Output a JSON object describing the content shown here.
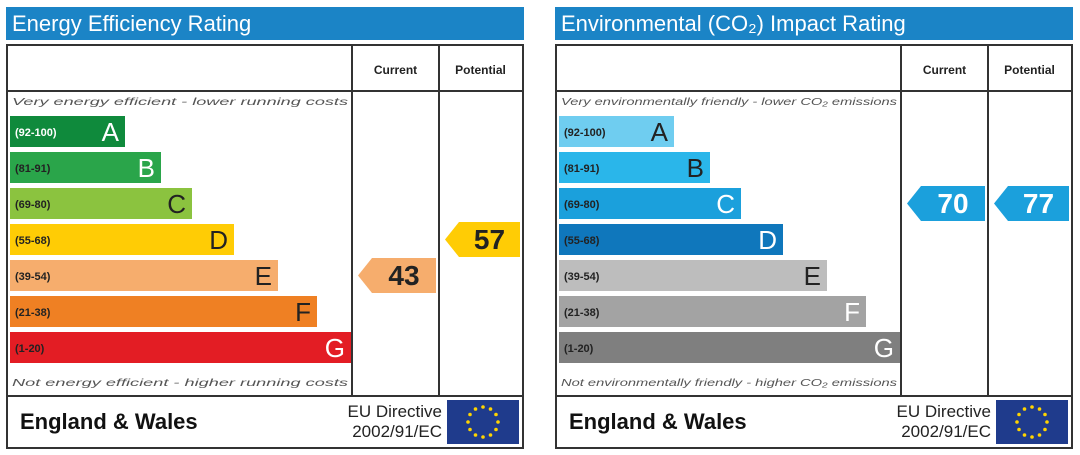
{
  "charts": [
    {
      "id": "energy",
      "title": "Energy Efficiency Rating",
      "title_color": "#1b84c6",
      "col_current": "Current",
      "col_potential": "Potential",
      "top_note": "Very energy efficient - lower running costs",
      "bottom_note": "Not energy efficient - higher running costs",
      "bands": [
        {
          "range": "(92-100)",
          "letter": "A",
          "color": "#0f8a3c",
          "letter_color": "#ffffff"
        },
        {
          "range": "(81-91)",
          "letter": "B",
          "color": "#2aa54a",
          "letter_color": "#ffffff"
        },
        {
          "range": "(69-80)",
          "letter": "C",
          "color": "#8bc33f",
          "letter_color": "#222222"
        },
        {
          "range": "(55-68)",
          "letter": "D",
          "color": "#ffcc05",
          "letter_color": "#222222"
        },
        {
          "range": "(39-54)",
          "letter": "E",
          "color": "#f6ad6d",
          "letter_color": "#222222"
        },
        {
          "range": "(21-38)",
          "letter": "F",
          "color": "#ef8023",
          "letter_color": "#222222"
        },
        {
          "range": "(1-20)",
          "letter": "G",
          "color": "#e31d24",
          "letter_color": "#ffffff"
        }
      ],
      "current": {
        "value": 43,
        "band": "E",
        "color": "#f6ad6d"
      },
      "potential": {
        "value": 57,
        "band": "D",
        "color": "#ffcc05"
      },
      "footer": {
        "country": "England & Wales",
        "directive_line1": "EU Directive",
        "directive_line2": "2002/91/EC"
      }
    },
    {
      "id": "environment",
      "title": "Environmental (CO₂) Impact Rating",
      "title_color": "#1b84c6",
      "col_current": "Current",
      "col_potential": "Potential",
      "top_note": "Very environmentally friendly - lower CO₂ emissions",
      "bottom_note": "Not environmentally friendly - higher CO₂ emissions",
      "bands": [
        {
          "range": "(92-100)",
          "letter": "A",
          "color": "#6fcdf0",
          "letter_color": "#222222"
        },
        {
          "range": "(81-91)",
          "letter": "B",
          "color": "#2ab6ea",
          "letter_color": "#222222"
        },
        {
          "range": "(69-80)",
          "letter": "C",
          "color": "#1ba0dc",
          "letter_color": "#ffffff"
        },
        {
          "range": "(55-68)",
          "letter": "D",
          "color": "#0f77bc",
          "letter_color": "#ffffff"
        },
        {
          "range": "(39-54)",
          "letter": "E",
          "color": "#bdbdbd",
          "letter_color": "#222222"
        },
        {
          "range": "(21-38)",
          "letter": "F",
          "color": "#a3a3a3",
          "letter_color": "#ffffff"
        },
        {
          "range": "(1-20)",
          "letter": "G",
          "color": "#7f7f7f",
          "letter_color": "#ffffff"
        }
      ],
      "current": {
        "value": 70,
        "band": "C",
        "color": "#1ba0dc"
      },
      "potential": {
        "value": 77,
        "band": "C",
        "color": "#1ba0dc"
      },
      "footer": {
        "country": "England & Wales",
        "directive_line1": "EU Directive",
        "directive_line2": "2002/91/EC"
      }
    }
  ],
  "chart_data": [
    {
      "type": "bar",
      "title": "Energy Efficiency Rating",
      "categories": [
        "(92-100) A",
        "(81-91) B",
        "(69-80) C",
        "(55-68) D",
        "(39-54) E",
        "(21-38) F",
        "(1-20) G"
      ],
      "series": [
        {
          "name": "Current",
          "values": [
            null,
            null,
            null,
            null,
            43,
            null,
            null
          ]
        },
        {
          "name": "Potential",
          "values": [
            null,
            null,
            null,
            57,
            null,
            null,
            null
          ]
        }
      ]
    },
    {
      "type": "bar",
      "title": "Environmental (CO₂) Impact Rating",
      "categories": [
        "(92-100) A",
        "(81-91) B",
        "(69-80) C",
        "(55-68) D",
        "(39-54) E",
        "(21-38) F",
        "(1-20) G"
      ],
      "series": [
        {
          "name": "Current",
          "values": [
            null,
            null,
            70,
            null,
            null,
            null,
            null
          ]
        },
        {
          "name": "Potential",
          "values": [
            null,
            null,
            77,
            null,
            null,
            null,
            null
          ]
        }
      ]
    }
  ],
  "flag": {
    "background": "#1f3b8c",
    "stars": "#ffd400"
  }
}
